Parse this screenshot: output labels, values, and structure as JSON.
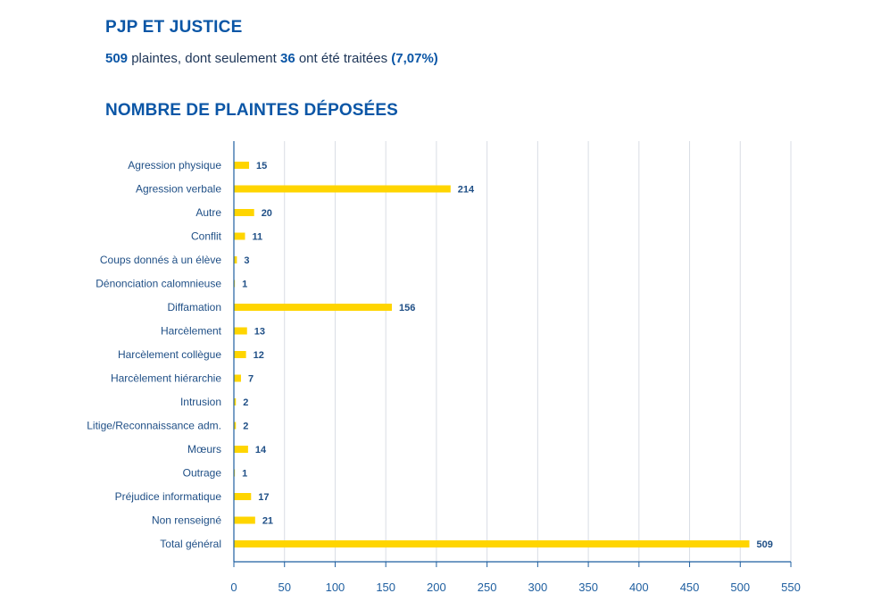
{
  "header": {
    "title": "PJP ET JUSTICE",
    "summary": {
      "count_total": "509",
      "text_1": " plaintes, dont seulement ",
      "count_treated": "36",
      "text_2": " ont été traitées ",
      "ratio": "(7,07%)"
    }
  },
  "colors": {
    "bar": "#ffd500",
    "axis": "#1f5fa0",
    "grid": "#d9dde4",
    "text": "#1f4f86"
  },
  "chart_data": {
    "type": "bar",
    "orientation": "horizontal",
    "title": "NOMBRE DE PLAINTES DÉPOSÉES",
    "xlabel": "",
    "ylabel": "",
    "xlim": [
      0,
      550
    ],
    "xticks": [
      0,
      50,
      100,
      150,
      200,
      250,
      300,
      350,
      400,
      450,
      500,
      550
    ],
    "grid": "vertical",
    "legend": "none",
    "categories": [
      "Agression physique",
      "Agression verbale",
      "Autre",
      "Conflit",
      "Coups donnés à un élève",
      "Dénonciation calomnieuse",
      "Diffamation",
      "Harcèlement",
      "Harcèlement collègue",
      "Harcèlement hiérarchie",
      "Intrusion",
      "Litige/Reconnaissance adm.",
      "Mœurs",
      "Outrage",
      "Préjudice informatique",
      "Non renseigné",
      "Total général"
    ],
    "values": [
      15,
      214,
      20,
      11,
      3,
      1,
      156,
      13,
      12,
      7,
      2,
      2,
      14,
      1,
      17,
      21,
      509
    ]
  }
}
